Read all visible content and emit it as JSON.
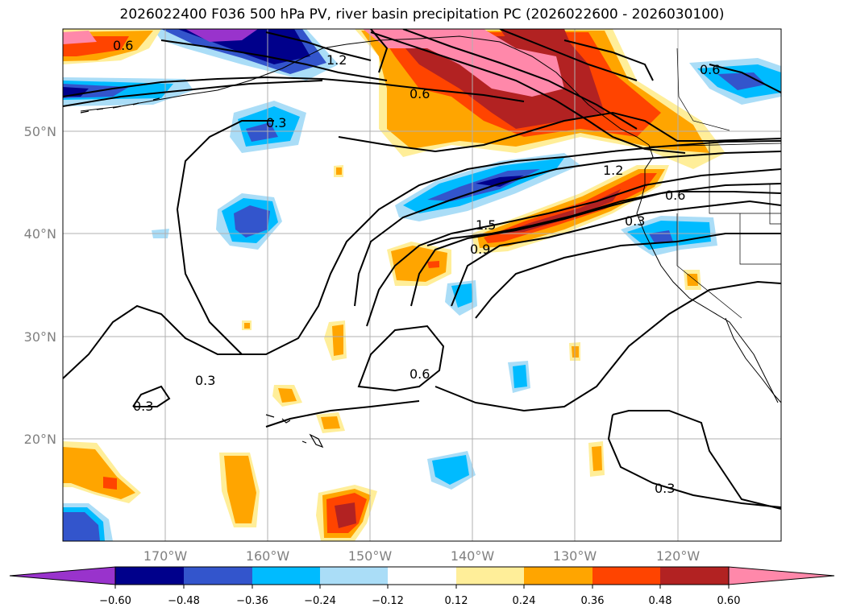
{
  "title": "2026022400 F036 500 hPa PV, river basin precipitation PC (2026022600 - 2026030100)",
  "map": {
    "lat_labels": [
      {
        "lat": 50,
        "text": "50°N"
      },
      {
        "lat": 40,
        "text": "40°N"
      },
      {
        "lat": 30,
        "text": "30°N"
      },
      {
        "lat": 20,
        "text": "20°N"
      }
    ],
    "lon_labels": [
      {
        "lon": -170,
        "text": "170°W"
      },
      {
        "lon": -160,
        "text": "160°W"
      },
      {
        "lon": -150,
        "text": "150°W"
      },
      {
        "lon": -140,
        "text": "140°W"
      },
      {
        "lon": -130,
        "text": "130°W"
      },
      {
        "lon": -120,
        "text": "120°W"
      }
    ],
    "extent": {
      "lon_min": -180,
      "lon_max": -110,
      "lat_min": 10,
      "lat_max": 60
    },
    "gridlines": true,
    "contour_labels": [
      "0.6",
      "1.2",
      "0.6",
      "0.3",
      "0.6",
      "1.2",
      "0.6",
      "0.3",
      "1.5",
      "0.9",
      "0.6",
      "0.3",
      "0.3",
      "0.3"
    ]
  },
  "colorbar": {
    "ticks": [
      "−0.60",
      "−0.48",
      "−0.36",
      "−0.24",
      "−0.12",
      "0.12",
      "0.24",
      "0.36",
      "0.48",
      "0.60"
    ],
    "colors": [
      "#9933cc",
      "#00008b",
      "#3355cc",
      "#00bbff",
      "#aaddf7",
      "#ffffff",
      "#ffee99",
      "#ffa500",
      "#ff4400",
      "#b22222",
      "#ff88aa"
    ],
    "extend": "both"
  }
}
